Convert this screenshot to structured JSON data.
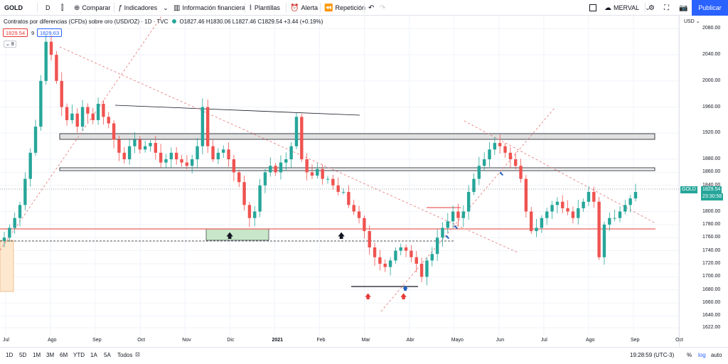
{
  "toolbar": {
    "symbol": "GOLD",
    "interval": "D",
    "compare": "Comparar",
    "indicators": "Indicadores",
    "financial_info": "Información financiera",
    "templates": "Plantillas",
    "alert": "Alerta",
    "replay": "Repetición",
    "layout_name": "MERVAL",
    "publish": "Publicar"
  },
  "legend": {
    "title": "Contratos por diferencias (CFDs) sobre oro (USD/OZ) · 1D · TVC",
    "ohlc": "O1827.46  H1830.06  L1827.46  C1829.54  +3.44 (+0.19%)",
    "bid": "1829.54",
    "spread": "9",
    "ask": "1829.63",
    "collapse": "8"
  },
  "price_scale": {
    "unit": "USD",
    "ticks": [
      "2080.00",
      "2040.00",
      "2000.00",
      "1960.00",
      "1920.00",
      "1880.00",
      "1860.00",
      "1840.00",
      "1800.00",
      "1780.00",
      "1760.00",
      "1740.00",
      "1720.00",
      "1700.00",
      "1680.00",
      "1660.00",
      "1640.00",
      "1622.00"
    ],
    "current_label": "GOLD",
    "current_price": "1829.54",
    "countdown": "23:30:58"
  },
  "time_axis": {
    "labels": [
      "Jul",
      "Ago",
      "Sep",
      "Oct",
      "Nov",
      "Dic",
      "2021",
      "Feb",
      "Mar",
      "Abr",
      "Mayo",
      "Jun",
      "Jul",
      "Ago",
      "Sep",
      "Oct"
    ]
  },
  "bottom": {
    "ranges": [
      "1D",
      "5D",
      "1M",
      "3M",
      "6M",
      "YTD",
      "1A",
      "5A",
      "Todos"
    ],
    "clock": "19:28:59 (UTC-3)",
    "pct": "%",
    "log": "log",
    "auto": "auto"
  },
  "colors": {
    "up": "#26a69a",
    "down": "#ef5350",
    "accent": "#2962ff"
  },
  "chart_data": {
    "type": "candlestick",
    "ylim": [
      1610,
      2100
    ],
    "close_series": [
      1760,
      1775,
      1790,
      1810,
      1850,
      1890,
      1930,
      2000,
      2060,
      2040,
      2000,
      1960,
      1940,
      1950,
      1930,
      1960,
      1950,
      1940,
      1965,
      1945,
      1935,
      1910,
      1890,
      1880,
      1900,
      1910,
      1895,
      1900,
      1905,
      1890,
      1875,
      1880,
      1890,
      1880,
      1875,
      1870,
      1880,
      1900,
      1960,
      1900,
      1880,
      1890,
      1895,
      1880,
      1860,
      1845,
      1810,
      1790,
      1800,
      1840,
      1860,
      1870,
      1860,
      1875,
      1880,
      1900,
      1945,
      1880,
      1860,
      1855,
      1865,
      1850,
      1850,
      1840,
      1830,
      1830,
      1810,
      1800,
      1790,
      1770,
      1745,
      1730,
      1720,
      1715,
      1725,
      1740,
      1745,
      1740,
      1730,
      1720,
      1700,
      1725,
      1735,
      1760,
      1775,
      1785,
      1800,
      1790,
      1800,
      1830,
      1850,
      1870,
      1880,
      1895,
      1905,
      1900,
      1890,
      1880,
      1870,
      1850,
      1800,
      1770,
      1775,
      1790,
      1800,
      1810,
      1815,
      1805,
      1800,
      1790,
      1805,
      1815,
      1830,
      1815,
      1730,
      1780,
      1790,
      1790,
      1800,
      1810,
      1820,
      1830
    ]
  }
}
